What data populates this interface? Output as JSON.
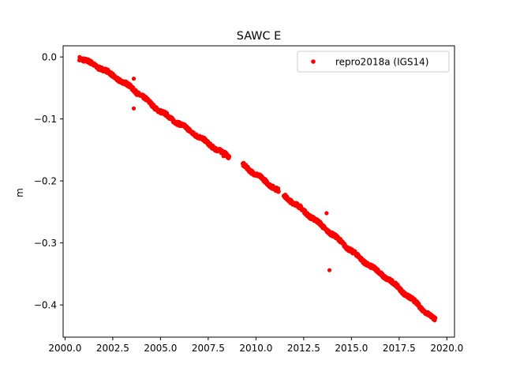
{
  "chart_data": {
    "type": "scatter",
    "title": "SAWC E",
    "xlabel": "",
    "ylabel": "m",
    "xlim": [
      1999.9,
      2020.4
    ],
    "ylim": [
      -0.452,
      0.018
    ],
    "xticks": [
      2000.0,
      2002.5,
      2005.0,
      2007.5,
      2010.0,
      2012.5,
      2015.0,
      2017.5,
      2020.0
    ],
    "xtick_labels": [
      "2000.0",
      "2002.5",
      "2005.0",
      "2007.5",
      "2010.0",
      "2012.5",
      "2015.0",
      "2017.5",
      "2020.0"
    ],
    "yticks": [
      0.0,
      -0.1,
      -0.2,
      -0.3,
      -0.4
    ],
    "ytick_labels": [
      "0.0",
      "−0.1",
      "−0.2",
      "−0.3",
      "−0.4"
    ],
    "grid": false,
    "legend": {
      "position": "top-right"
    },
    "series": [
      {
        "name": "repro2018a (IGS14)",
        "color": "#ff0000",
        "marker": "circle",
        "trend": {
          "x_start": 2000.75,
          "x_end": 2019.4,
          "knots": [
            [
              2000.75,
              -0.001
            ],
            [
              2002.0,
              -0.02
            ],
            [
              2003.5,
              -0.05
            ],
            [
              2005.0,
              -0.088
            ],
            [
              2006.5,
              -0.118
            ],
            [
              2008.0,
              -0.15
            ],
            [
              2009.5,
              -0.178
            ],
            [
              2011.0,
              -0.212
            ],
            [
              2012.5,
              -0.248
            ],
            [
              2014.0,
              -0.286
            ],
            [
              2015.5,
              -0.326
            ],
            [
              2017.0,
              -0.36
            ],
            [
              2018.5,
              -0.4
            ],
            [
              2019.4,
              -0.425
            ]
          ],
          "gaps": [
            [
              2008.6,
              2009.3
            ],
            [
              2011.2,
              2011.45
            ]
          ]
        },
        "outliers": [
          {
            "x": 2003.6,
            "y": -0.035
          },
          {
            "x": 2003.6,
            "y": -0.083
          },
          {
            "x": 2008.3,
            "y": -0.16
          },
          {
            "x": 2013.7,
            "y": -0.252
          },
          {
            "x": 2013.85,
            "y": -0.344
          },
          {
            "x": 2013.5,
            "y": -0.276
          }
        ]
      }
    ]
  }
}
